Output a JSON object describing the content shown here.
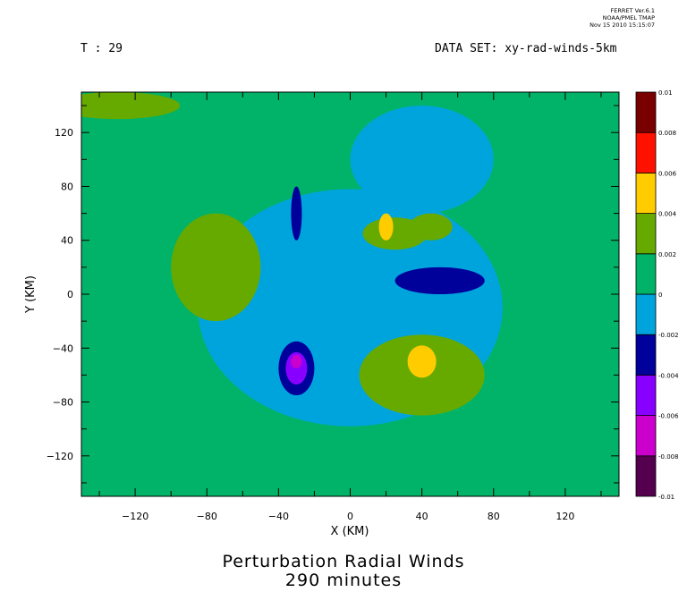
{
  "stamp": {
    "line1": "FERRET  Ver.6.1",
    "line2": "NOAA/PMEL TMAP",
    "line3": "Nov 15 2010 15:15:07"
  },
  "header": {
    "left": "T : 29",
    "right": "DATA SET: xy-rad-winds-5km"
  },
  "title": {
    "line1": "Perturbation Radial Winds",
    "line2": "290 minutes"
  },
  "chart_data": {
    "type": "heatmap",
    "xlabel": "X (KM)",
    "ylabel": "Y (KM)",
    "xlim": [
      -150,
      150
    ],
    "ylim": [
      -150,
      150
    ],
    "xticks": [
      -120,
      -80,
      -40,
      0,
      40,
      80,
      120
    ],
    "yticks": [
      -120,
      -80,
      -40,
      0,
      40,
      80,
      120
    ],
    "colorbar": {
      "levels": [
        -0.01,
        -0.008,
        -0.006,
        -0.004,
        -0.002,
        0,
        0.002,
        0.004,
        0.006,
        0.008,
        0.01
      ],
      "labels": [
        "-0.01",
        "-0.008",
        "-0.006",
        "-0.004",
        "-0.002",
        "0",
        "0.002",
        "0.004",
        "0.006",
        "0.008",
        "0.01"
      ],
      "colors": [
        "#55004f",
        "#cc00cc",
        "#8800ff",
        "#00009a",
        "#00a4dd",
        "#00b368",
        "#66aa00",
        "#ffcc00",
        "#ff1100",
        "#7a0000"
      ]
    },
    "background_level": "0 to 0.002",
    "field": [
      {
        "level": "-0.002 to 0",
        "shape": "annulus",
        "center": [
          0,
          -10
        ],
        "rx": 85,
        "ry": 88
      },
      {
        "level": "-0.002 to 0",
        "shape": "blob",
        "center": [
          40,
          100
        ],
        "rx": 40,
        "ry": 40
      },
      {
        "level": "0.002 to 0.004",
        "shape": "blob",
        "center": [
          -130,
          140
        ],
        "rx": 35,
        "ry": 10
      },
      {
        "level": "0.002 to 0.004",
        "shape": "blob",
        "center": [
          -75,
          20
        ],
        "rx": 25,
        "ry": 40
      },
      {
        "level": "0.002 to 0.004",
        "shape": "blob",
        "center": [
          40,
          -60
        ],
        "rx": 35,
        "ry": 30
      },
      {
        "level": "0.002 to 0.004",
        "shape": "blob",
        "center": [
          25,
          45
        ],
        "rx": 18,
        "ry": 12
      },
      {
        "level": "0.002 to 0.004",
        "shape": "blob",
        "center": [
          45,
          50
        ],
        "rx": 12,
        "ry": 10
      },
      {
        "level": "0.004 to 0.006",
        "shape": "blob",
        "center": [
          40,
          -50
        ],
        "rx": 8,
        "ry": 12
      },
      {
        "level": "0.004 to 0.006",
        "shape": "blob",
        "center": [
          20,
          50
        ],
        "rx": 4,
        "ry": 10
      },
      {
        "level": "-0.004 to -0.002",
        "shape": "blob",
        "center": [
          -30,
          -55
        ],
        "rx": 10,
        "ry": 20
      },
      {
        "level": "-0.004 to -0.002",
        "shape": "blob",
        "center": [
          -30,
          60
        ],
        "rx": 3,
        "ry": 20
      },
      {
        "level": "-0.004 to -0.002",
        "shape": "blob",
        "center": [
          50,
          10
        ],
        "rx": 25,
        "ry": 10
      },
      {
        "level": "-0.006 to -0.004",
        "shape": "blob",
        "center": [
          -30,
          -55
        ],
        "rx": 6,
        "ry": 12
      },
      {
        "level": "-0.008 to -0.006",
        "shape": "blob",
        "center": [
          -30,
          -50
        ],
        "rx": 3,
        "ry": 5
      }
    ]
  }
}
